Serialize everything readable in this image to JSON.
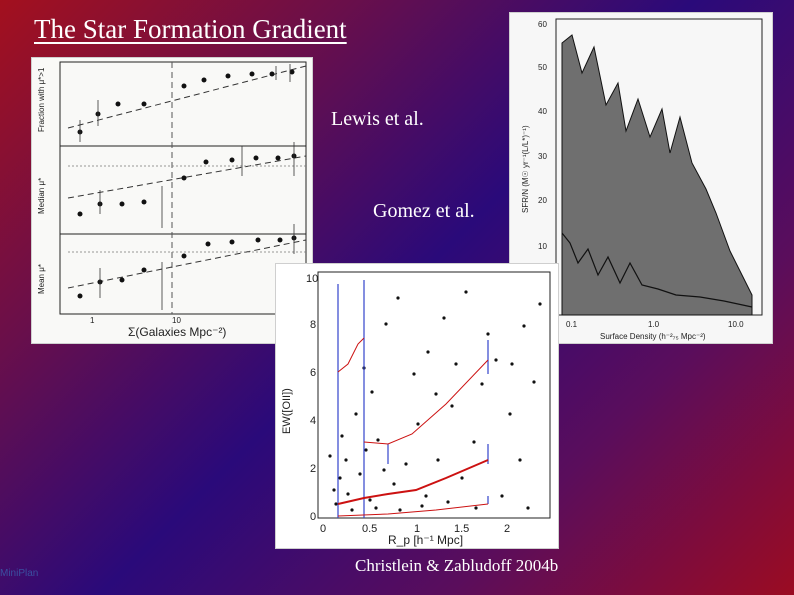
{
  "slide": {
    "title": "The Star Formation Gradient",
    "labels": {
      "lewis": "Lewis et al.",
      "gomez": "Gomez et al.",
      "christlein": "Christlein & Zabludoff 2004b"
    },
    "corner_link": "MiniPlan"
  },
  "figures": {
    "lewis": {
      "panel1_ylabel": "Fraction with μ*>1",
      "panel2_ylabel": "Median μ*",
      "panel3_ylabel": "Mean μ*",
      "xlabel": "Σ(Galaxies Mpc⁻²)",
      "ticks_x": [
        "1",
        "10"
      ]
    },
    "gomez": {
      "ylabel": "SFR/N (M☉ yr⁻¹(L/L*)⁻¹)",
      "xlabel": "Surface Density (h⁻²₇₅ Mpc⁻²)",
      "yticks": [
        "60",
        "50",
        "40",
        "30",
        "20",
        "10"
      ],
      "xticks": [
        "0.1",
        "1.0",
        "10.0"
      ]
    },
    "christlein": {
      "ylabel": "EW([OII])",
      "xlabel": "R_p [h⁻¹ Mpc]",
      "yticks": [
        "10",
        "8",
        "6",
        "4",
        "2",
        "0"
      ],
      "xticks": [
        "0",
        "0.5",
        "1",
        "1.5",
        "2"
      ]
    }
  },
  "colors": {
    "red_curve": "#cc1111",
    "blue_bar": "#3344cc",
    "gray_band": "#6f6f6f"
  }
}
